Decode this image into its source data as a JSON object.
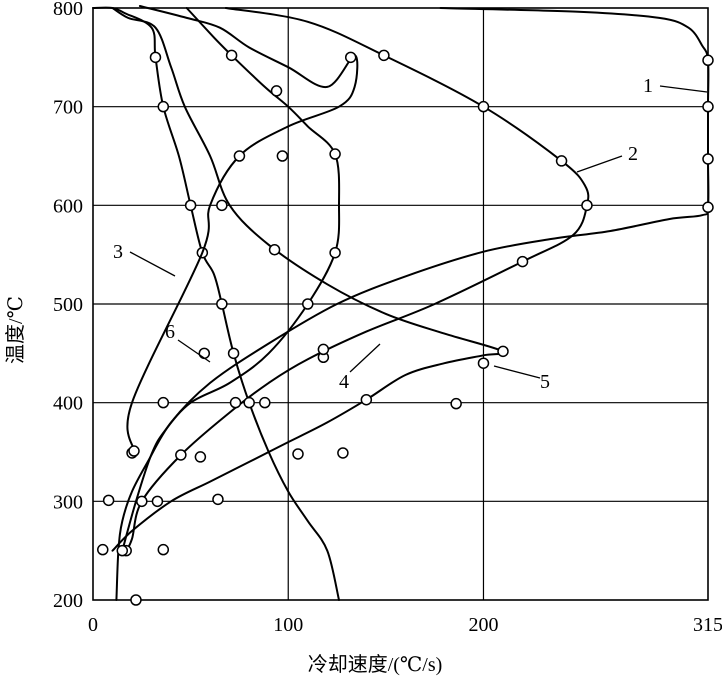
{
  "chart_data": {
    "type": "line",
    "xlabel": "冷却速度/(℃/s)",
    "ylabel": "温度/℃",
    "xlim": [
      0,
      315
    ],
    "ylim": [
      200,
      800
    ],
    "x_ticks": [
      0,
      100,
      200,
      315
    ],
    "x_tick_labels": [
      "0",
      "100",
      "200",
      "315"
    ],
    "y_ticks": [
      200,
      300,
      400,
      500,
      600,
      700,
      800
    ],
    "y_tick_labels": [
      "200",
      "300",
      "400",
      "500",
      "600",
      "700",
      "800"
    ],
    "grid": true,
    "series": [
      {
        "name": "1",
        "points": [
          [
            178,
            800
          ],
          [
            250,
            796
          ],
          [
            290,
            790
          ],
          [
            305,
            780
          ],
          [
            312,
            762
          ],
          [
            315,
            747
          ],
          [
            315,
            700
          ],
          [
            315,
            647
          ],
          [
            315,
            598
          ],
          [
            312,
            590
          ],
          [
            295,
            586
          ],
          [
            265,
            574
          ],
          [
            235,
            566
          ],
          [
            200,
            553
          ],
          [
            160,
            528
          ],
          [
            125,
            500
          ],
          [
            90,
            460
          ],
          [
            60,
            420
          ],
          [
            40,
            380
          ],
          [
            28,
            340
          ],
          [
            20,
            310
          ],
          [
            15,
            280
          ],
          [
            13,
            250
          ],
          [
            12,
            200
          ]
        ],
        "markers": [
          [
            315,
            747
          ],
          [
            315,
            700
          ],
          [
            315,
            647
          ],
          [
            315,
            598
          ]
        ]
      },
      {
        "name": "2",
        "points": [
          [
            68,
            800
          ],
          [
            110,
            786
          ],
          [
            149,
            752
          ],
          [
            200,
            700
          ],
          [
            240,
            645
          ],
          [
            252,
            620
          ],
          [
            253,
            600
          ],
          [
            246,
            570
          ],
          [
            220,
            543
          ],
          [
            175,
            500
          ],
          [
            140,
            472
          ],
          [
            110,
            444
          ],
          [
            90,
            420
          ],
          [
            70,
            390
          ],
          [
            45,
            347
          ],
          [
            25,
            300
          ],
          [
            20,
            262
          ],
          [
            17,
            250
          ]
        ],
        "markers": [
          [
            149,
            752
          ],
          [
            200,
            700
          ],
          [
            240,
            645
          ],
          [
            253,
            600
          ],
          [
            220,
            543
          ],
          [
            118,
            446
          ],
          [
            73,
            400
          ],
          [
            45,
            347
          ],
          [
            25,
            300
          ],
          [
            17,
            250
          ]
        ]
      },
      {
        "name": "3",
        "points": [
          [
            0,
            800
          ],
          [
            10,
            800
          ],
          [
            16,
            795
          ],
          [
            30,
            780
          ],
          [
            32,
            750
          ],
          [
            36,
            700
          ],
          [
            44,
            650
          ],
          [
            50,
            600
          ],
          [
            56,
            552
          ],
          [
            62,
            530
          ],
          [
            66,
            500
          ],
          [
            72,
            450
          ],
          [
            80,
            400
          ],
          [
            90,
            350
          ],
          [
            100,
            310
          ],
          [
            110,
            280
          ],
          [
            120,
            250
          ],
          [
            126,
            200
          ]
        ],
        "markers": [
          [
            32,
            750
          ],
          [
            36,
            700
          ],
          [
            50,
            600
          ],
          [
            56,
            552
          ],
          [
            66,
            500
          ],
          [
            72,
            450
          ],
          [
            80,
            400
          ],
          [
            20,
            349
          ],
          [
            8,
            301
          ],
          [
            5,
            251
          ]
        ]
      },
      {
        "name": "4",
        "points": [
          [
            48,
            800
          ],
          [
            62,
            770
          ],
          [
            71,
            752
          ],
          [
            88,
            720
          ],
          [
            100,
            700
          ],
          [
            110,
            680
          ],
          [
            124,
            652
          ],
          [
            126,
            600
          ],
          [
            124,
            552
          ],
          [
            110,
            500
          ],
          [
            90,
            450
          ],
          [
            70,
            420
          ],
          [
            50,
            400
          ],
          [
            37,
            372
          ],
          [
            30,
            348
          ],
          [
            22,
            300
          ],
          [
            15,
            250
          ]
        ],
        "markers": [
          [
            71,
            752
          ],
          [
            94,
            716
          ],
          [
            124,
            652
          ],
          [
            124,
            552
          ],
          [
            110,
            500
          ],
          [
            118,
            454
          ],
          [
            88,
            400
          ],
          [
            55,
            345
          ],
          [
            33,
            300
          ],
          [
            15,
            250
          ]
        ]
      },
      {
        "name": "5",
        "points": [
          [
            10,
            800
          ],
          [
            18,
            790
          ],
          [
            32,
            780
          ],
          [
            40,
            740
          ],
          [
            47,
            700
          ],
          [
            60,
            650
          ],
          [
            70,
            600
          ],
          [
            90,
            560
          ],
          [
            120,
            520
          ],
          [
            150,
            490
          ],
          [
            180,
            470
          ],
          [
            210,
            452
          ],
          [
            200,
            448
          ],
          [
            180,
            440
          ],
          [
            160,
            428
          ],
          [
            140,
            403
          ],
          [
            120,
            380
          ],
          [
            100,
            360
          ],
          [
            80,
            340
          ],
          [
            60,
            320
          ],
          [
            40,
            300
          ],
          [
            20,
            270
          ],
          [
            10,
            250
          ]
        ],
        "markers": [
          [
            210,
            452
          ],
          [
            200,
            440
          ],
          [
            186,
            399
          ],
          [
            140,
            403
          ],
          [
            128,
            349
          ],
          [
            105,
            348
          ],
          [
            64,
            302
          ],
          [
            36,
            251
          ],
          [
            22,
            200
          ]
        ]
      },
      {
        "name": "6",
        "points": [
          [
            24,
            802
          ],
          [
            48,
            790
          ],
          [
            65,
            780
          ],
          [
            80,
            760
          ],
          [
            100,
            740
          ],
          [
            120,
            720
          ],
          [
            134,
            752
          ],
          [
            134,
            720
          ],
          [
            126,
            700
          ],
          [
            100,
            680
          ],
          [
            75,
            650
          ],
          [
            60,
            600
          ],
          [
            56,
            552
          ],
          [
            20,
            400
          ],
          [
            21,
            351
          ]
        ],
        "markers": [
          [
            132,
            750
          ],
          [
            97,
            650
          ],
          [
            75,
            650
          ],
          [
            66,
            600
          ],
          [
            93,
            555
          ],
          [
            57,
            450
          ],
          [
            36,
            400
          ],
          [
            21,
            351
          ]
        ]
      }
    ],
    "curve_labels": [
      "1",
      "2",
      "3",
      "4",
      "5",
      "6"
    ]
  }
}
